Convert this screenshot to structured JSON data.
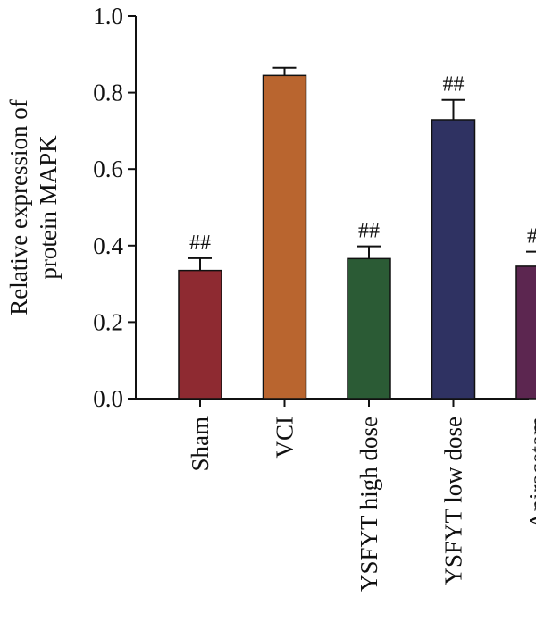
{
  "chart_data": {
    "type": "bar",
    "ylabel_lines": [
      "Relative expression of",
      "protein MAPK"
    ],
    "ylim": [
      0,
      1.0
    ],
    "yticks": [
      "0.0",
      "0.2",
      "0.4",
      "0.6",
      "0.8",
      "1.0"
    ],
    "categories": [
      "Sham",
      "VCI",
      "YSFYT high dose",
      "YSFYT low dose",
      "Aniracetam"
    ],
    "values": [
      0.335,
      0.845,
      0.366,
      0.729,
      0.346
    ],
    "errors": [
      0.032,
      0.02,
      0.032,
      0.052,
      0.038
    ],
    "annotations": [
      "##",
      "",
      "##",
      "##",
      "##"
    ],
    "colors": [
      "#8e2a31",
      "#b9652f",
      "#2b5b35",
      "#2f3262",
      "#5c2650"
    ],
    "grid": false,
    "legend": "none"
  }
}
